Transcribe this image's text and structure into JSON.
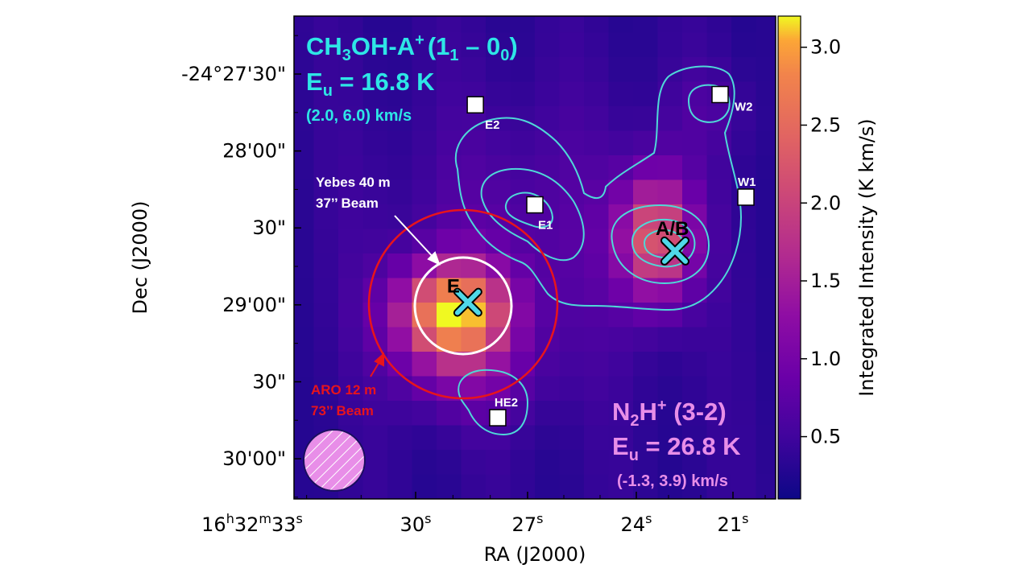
{
  "chart_data": {
    "type": "heatmap",
    "title_top_left": {
      "line1_prefix": "CH",
      "line1_sub": "3",
      "line1_mid": "OH-A",
      "line1_sup": "+",
      "line1_transition": "(1",
      "line1_transition_sub1": "1",
      "line1_transition_dash": " – 0",
      "line1_transition_sub2": "0",
      "line1_transition_close": ")",
      "energy_prefix": "E",
      "energy_sub": "u",
      "energy_value": " = 16.8 K",
      "velocity_range": "(2.0, 6.0) km/s"
    },
    "title_bottom_right": {
      "line1_prefix": "N",
      "line1_sub": "2",
      "line1_mid": "H",
      "line1_sup": "+",
      "line1_transition": " (3-2)",
      "energy_prefix": "E",
      "energy_sub": "u",
      "energy_value": " = 26.8 K",
      "velocity_range": "(-1.3, 3.9) km/s"
    },
    "xlabel": "RA (J2000)",
    "ylabel": "Dec (J2000)",
    "x_ticks": [
      {
        "label_parts": [
          "16",
          "h",
          "32",
          "m",
          "33",
          "s"
        ],
        "ra_seconds": 33
      },
      {
        "label_parts": [
          "30",
          "s"
        ],
        "ra_seconds": 30
      },
      {
        "label_parts": [
          "27",
          "s"
        ],
        "ra_seconds": 27
      },
      {
        "label_parts": [
          "24",
          "s"
        ],
        "ra_seconds": 24
      },
      {
        "label_parts": [
          "21",
          "s"
        ],
        "ra_seconds": 21
      }
    ],
    "y_ticks": [
      {
        "label": "-24°27'30\"",
        "dec_arcsec": 0
      },
      {
        "label": "28'00\"",
        "dec_arcsec": 30
      },
      {
        "label": "30\"",
        "dec_arcsec": 60
      },
      {
        "label": "29'00\"",
        "dec_arcsec": 90
      },
      {
        "label": "30\"",
        "dec_arcsec": 120
      },
      {
        "label": "30'00\"",
        "dec_arcsec": 150
      }
    ],
    "colorbar": {
      "label": "Integrated Intensity (K km/s)",
      "range": [
        0.1,
        3.2
      ],
      "ticks": [
        {
          "label": "3.0",
          "value": 3.0
        },
        {
          "label": "2.5",
          "value": 2.5
        },
        {
          "label": "2.0",
          "value": 2.0
        },
        {
          "label": "1.5",
          "value": 1.5
        },
        {
          "label": "1.0",
          "value": 1.0
        },
        {
          "label": "0.5",
          "value": 0.5
        }
      ],
      "colormap": "plasma"
    },
    "sources": [
      {
        "label": "E2",
        "marker": "square",
        "ra_seconds": 28.4,
        "dec_arcsec": 12
      },
      {
        "label": "E1",
        "marker": "square",
        "ra_seconds": 26.8,
        "dec_arcsec": 51
      },
      {
        "label": "W2",
        "marker": "square",
        "ra_seconds": 21.4,
        "dec_arcsec": 8
      },
      {
        "label": "W1",
        "marker": "square",
        "ra_seconds": 20.6,
        "dec_arcsec": 48
      },
      {
        "label": "HE2",
        "marker": "square",
        "ra_seconds": 27.8,
        "dec_arcsec": 134
      }
    ],
    "pointings": [
      {
        "label": "E",
        "marker": "x",
        "ra_seconds": 28.6,
        "dec_arcsec": 89
      },
      {
        "label": "A/B",
        "marker": "x",
        "ra_seconds": 22.8,
        "dec_arcsec": 69
      }
    ],
    "beams": [
      {
        "label_line1": "Yebes 40 m",
        "label_line2": "37’’ Beam",
        "diameter_arcsec": 37,
        "color": "#ffffff"
      },
      {
        "label_line1": "ARO 12 m",
        "label_line2": "73’’ Beam",
        "diameter_arcsec": 73,
        "color": "#e8141c"
      }
    ],
    "colors": {
      "ch3oh_text": "#2ee6e6",
      "n2h_text": "#e88ee8",
      "contour": "#4fd8d8",
      "marker_x_fill": "#4fd8e8",
      "beam_patch": "#e88ee8",
      "background_pixel": "#24108a"
    },
    "grid": false
  }
}
